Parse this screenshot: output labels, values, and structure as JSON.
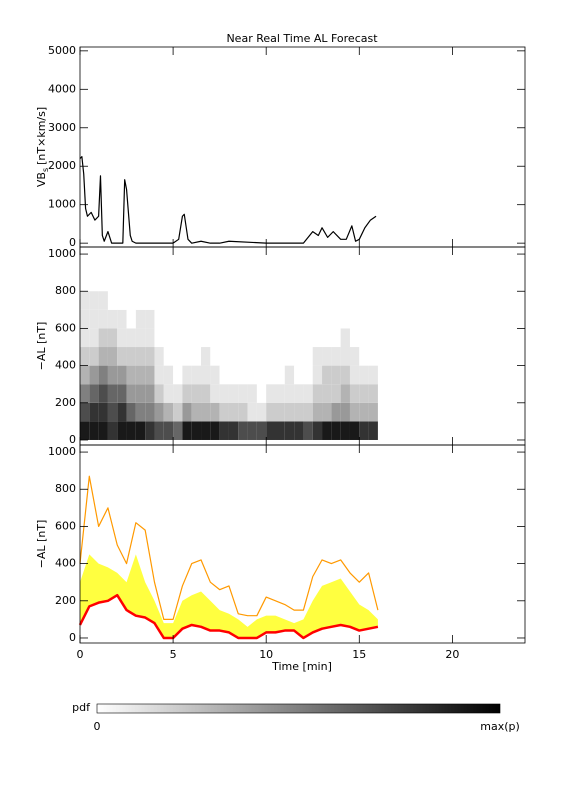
{
  "chart_data": [
    {
      "type": "line",
      "title": "Near Real Time AL Forecast",
      "ylabel_main": "VB",
      "ylabel_sub": "s",
      "ylabel_unit": "[nT×km/s]",
      "xlim": [
        0,
        23.9
      ],
      "xticks": [
        0,
        5,
        10,
        15,
        20
      ],
      "ylim": [
        -100,
        5100
      ],
      "yticks": [
        0,
        1000,
        2000,
        3000,
        4000,
        5000
      ],
      "x": [
        0,
        0.1,
        0.2,
        0.3,
        0.4,
        0.6,
        0.8,
        1.0,
        1.1,
        1.2,
        1.3,
        1.5,
        1.7,
        1.8,
        2.0,
        2.3,
        2.4,
        2.5,
        2.7,
        2.8,
        3.0,
        4.0,
        5.0,
        5.3,
        5.5,
        5.6,
        5.8,
        6.0,
        6.5,
        7.0,
        7.5,
        8.0,
        10,
        12,
        12.5,
        12.8,
        13.0,
        13.3,
        13.6,
        14.0,
        14.3,
        14.6,
        14.8,
        15.0,
        15.3,
        15.6,
        15.9
      ],
      "series": [
        {
          "color": "#000000",
          "values": [
            2200,
            2250,
            1800,
            900,
            700,
            800,
            600,
            700,
            1750,
            200,
            50,
            300,
            0,
            0,
            0,
            0,
            1650,
            1400,
            200,
            50,
            0,
            0,
            0,
            100,
            700,
            750,
            100,
            0,
            50,
            0,
            0,
            50,
            0,
            0,
            300,
            200,
            400,
            150,
            300,
            100,
            100,
            450,
            50,
            100,
            400,
            600,
            700
          ]
        }
      ]
    },
    {
      "type": "heatmap",
      "ylabel": "−AL [nT]",
      "xlim": [
        0,
        23.9
      ],
      "xticks": [
        0,
        5,
        10,
        15,
        20
      ],
      "ylim": [
        -27,
        1038
      ],
      "yticks": [
        0,
        200,
        400,
        600,
        800,
        1000
      ],
      "x_bins": [
        0,
        0.5,
        1,
        1.5,
        2,
        2.5,
        3,
        3.5,
        4,
        4.5,
        5,
        5.5,
        6,
        6.5,
        7,
        7.5,
        8,
        8.5,
        9,
        9.5,
        10,
        10.5,
        11,
        11.5,
        12,
        12.5,
        13,
        13.5,
        14,
        14.5,
        15,
        15.5,
        16
      ],
      "y_bins": [
        0,
        100,
        200,
        300,
        400,
        500,
        600,
        700,
        800
      ],
      "z": [
        [
          0.9,
          0.7,
          0.5,
          0.3,
          0.2,
          0.1,
          0.1,
          0.1
        ],
        [
          0.9,
          0.8,
          0.6,
          0.4,
          0.2,
          0.1,
          0.1,
          0.1
        ],
        [
          0.9,
          0.8,
          0.7,
          0.5,
          0.3,
          0.2,
          0.1,
          0.1
        ],
        [
          0.8,
          0.7,
          0.6,
          0.4,
          0.3,
          0.2,
          0.1,
          0
        ],
        [
          0.9,
          0.8,
          0.6,
          0.4,
          0.2,
          0.1,
          0.1,
          0
        ],
        [
          0.9,
          0.6,
          0.4,
          0.3,
          0.2,
          0.1,
          0,
          0
        ],
        [
          0.9,
          0.5,
          0.4,
          0.3,
          0.2,
          0.1,
          0.1,
          0
        ],
        [
          0.8,
          0.5,
          0.4,
          0.3,
          0.2,
          0.1,
          0.1,
          0
        ],
        [
          0.7,
          0.4,
          0.2,
          0.1,
          0.1,
          0,
          0,
          0
        ],
        [
          0.7,
          0.3,
          0.1,
          0.1,
          0,
          0,
          0,
          0
        ],
        [
          0.6,
          0.2,
          0.1,
          0,
          0,
          0,
          0,
          0
        ],
        [
          0.9,
          0.4,
          0.2,
          0.1,
          0,
          0,
          0,
          0
        ],
        [
          0.9,
          0.3,
          0.2,
          0.1,
          0,
          0,
          0,
          0
        ],
        [
          0.9,
          0.3,
          0.2,
          0.1,
          0.1,
          0,
          0,
          0
        ],
        [
          0.9,
          0.3,
          0.1,
          0.1,
          0,
          0,
          0,
          0
        ],
        [
          0.8,
          0.2,
          0.1,
          0,
          0,
          0,
          0,
          0
        ],
        [
          0.8,
          0.2,
          0.1,
          0,
          0,
          0,
          0,
          0
        ],
        [
          0.7,
          0.2,
          0.1,
          0,
          0,
          0,
          0,
          0
        ],
        [
          0.7,
          0.1,
          0.1,
          0,
          0,
          0,
          0,
          0
        ],
        [
          0.7,
          0.1,
          0,
          0,
          0,
          0,
          0,
          0
        ],
        [
          0.8,
          0.2,
          0.1,
          0,
          0,
          0,
          0,
          0
        ],
        [
          0.8,
          0.2,
          0.1,
          0,
          0,
          0,
          0,
          0
        ],
        [
          0.8,
          0.2,
          0.1,
          0.1,
          0,
          0,
          0,
          0
        ],
        [
          0.8,
          0.2,
          0.1,
          0,
          0,
          0,
          0,
          0
        ],
        [
          0.7,
          0.2,
          0.1,
          0,
          0,
          0,
          0,
          0
        ],
        [
          0.8,
          0.3,
          0.2,
          0.1,
          0.1,
          0,
          0,
          0
        ],
        [
          0.9,
          0.3,
          0.2,
          0.2,
          0.1,
          0,
          0,
          0
        ],
        [
          0.9,
          0.4,
          0.2,
          0.2,
          0.1,
          0,
          0,
          0
        ],
        [
          0.9,
          0.4,
          0.3,
          0.2,
          0.1,
          0.1,
          0,
          0
        ],
        [
          0.9,
          0.3,
          0.2,
          0.1,
          0.1,
          0,
          0,
          0
        ],
        [
          0.8,
          0.3,
          0.2,
          0.1,
          0,
          0,
          0,
          0
        ],
        [
          0.8,
          0.3,
          0.2,
          0.1,
          0,
          0,
          0,
          0
        ]
      ],
      "colorbar": {
        "label": "pdf",
        "min_label": "0",
        "max_label": "max(p)"
      }
    },
    {
      "type": "line",
      "ylabel": "−AL [nT]",
      "xlabel": "Time [min]",
      "xlim": [
        0,
        23.9
      ],
      "xticks": [
        0,
        5,
        10,
        15,
        20
      ],
      "ylim": [
        -27,
        1038
      ],
      "yticks": [
        0,
        200,
        400,
        600,
        800,
        1000
      ],
      "x": [
        0,
        0.5,
        1,
        1.5,
        2,
        2.5,
        3,
        3.5,
        4,
        4.5,
        5,
        5.5,
        6,
        6.5,
        7,
        7.5,
        8,
        8.5,
        9,
        9.5,
        10,
        10.5,
        11,
        11.5,
        12,
        12.5,
        13,
        13.5,
        14,
        14.5,
        15,
        15.5,
        16
      ],
      "series": [
        {
          "color": "#ffff40",
          "style": "area",
          "fill_down_to_series": 2,
          "values": [
            300,
            450,
            400,
            380,
            350,
            300,
            450,
            300,
            200,
            80,
            80,
            200,
            230,
            250,
            200,
            150,
            130,
            100,
            60,
            100,
            120,
            120,
            100,
            80,
            100,
            200,
            280,
            300,
            320,
            250,
            180,
            150,
            100
          ]
        },
        {
          "color": "#ff9900",
          "values": [
            400,
            870,
            600,
            700,
            500,
            400,
            620,
            580,
            300,
            100,
            100,
            280,
            400,
            420,
            300,
            260,
            280,
            130,
            120,
            120,
            220,
            200,
            180,
            150,
            150,
            330,
            420,
            400,
            420,
            350,
            300,
            350,
            150
          ]
        },
        {
          "color": "#ff0000",
          "width": 2.5,
          "values": [
            70,
            170,
            190,
            200,
            230,
            150,
            120,
            110,
            80,
            0,
            0,
            50,
            70,
            60,
            40,
            40,
            30,
            0,
            0,
            0,
            30,
            30,
            40,
            40,
            0,
            30,
            50,
            60,
            70,
            60,
            40,
            50,
            60
          ]
        }
      ]
    }
  ]
}
